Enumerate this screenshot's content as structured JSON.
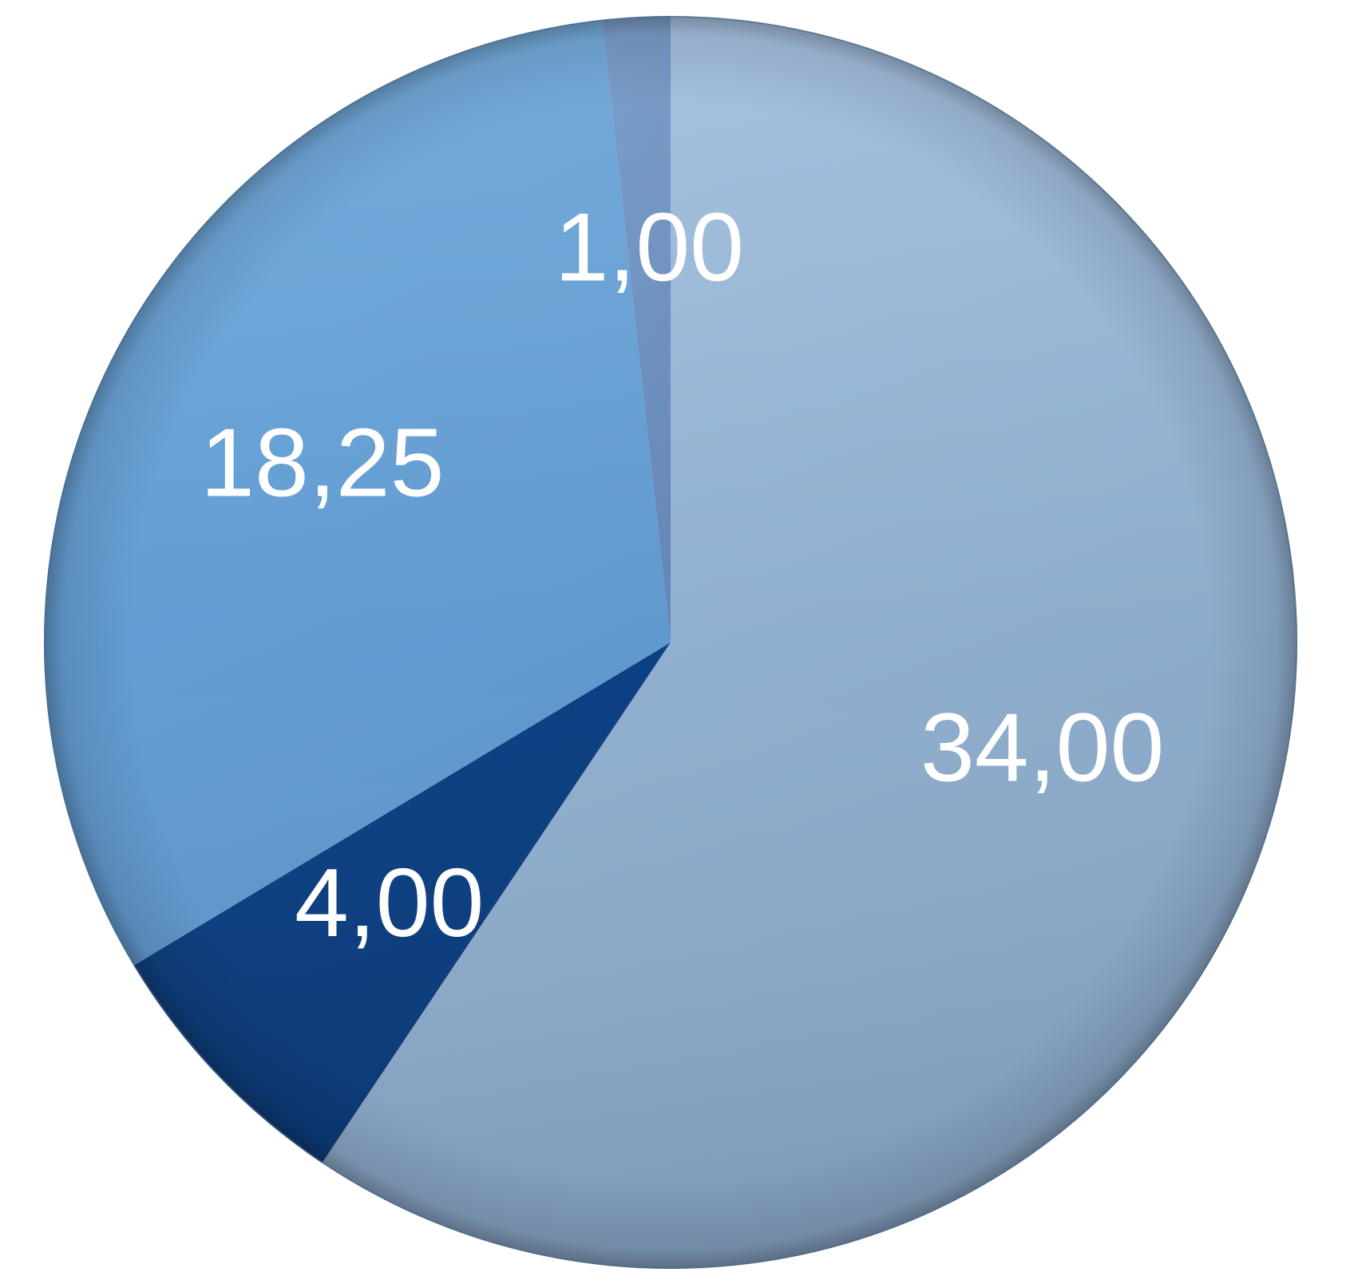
{
  "chart_data": {
    "type": "pie",
    "start_angle_deg": 0,
    "direction": "clockwise",
    "slices": [
      {
        "label": "34,00",
        "value": 34.0,
        "color": "#9fbee0",
        "color_edge": "#86a3c2"
      },
      {
        "label": "4,00",
        "value": 4.0,
        "color": "#0d4287",
        "color_edge": "#0a3a79"
      },
      {
        "label": "18,25",
        "value": 18.25,
        "color": "#68a6dc",
        "color_edge": "#5f97cc"
      },
      {
        "label": "1,00",
        "value": 1.0,
        "color": "#6f95c6",
        "color_edge": "#6487b8"
      }
    ]
  }
}
